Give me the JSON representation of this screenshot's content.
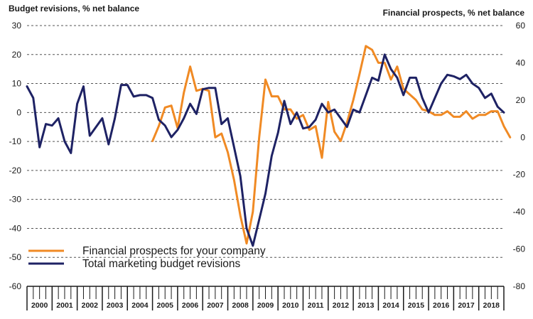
{
  "chart_data": {
    "type": "line",
    "left_axis_title": "Budget revisions, % net balance",
    "right_axis_title": "Financial prospects, % net balance",
    "left_axis": {
      "min": -60,
      "max": 30,
      "ticks": [
        "30",
        "20",
        "10",
        "0",
        "-10",
        "-20",
        "-30",
        "-40",
        "-50",
        "-60"
      ],
      "tick_values": [
        30,
        20,
        10,
        0,
        -10,
        -20,
        -30,
        -40,
        -50,
        -60
      ]
    },
    "right_axis": {
      "min": -80,
      "max": 60,
      "ticks": [
        "60",
        "40",
        "20",
        "0",
        "-20",
        "-40",
        "-60",
        "-80"
      ],
      "tick_values": [
        60,
        40,
        20,
        0,
        -20,
        -40,
        -60,
        -80
      ]
    },
    "years": [
      "2000",
      "2001",
      "2002",
      "2003",
      "2004",
      "2005",
      "2006",
      "2007",
      "2008",
      "2009",
      "2010",
      "2011",
      "2012",
      "2013",
      "2014",
      "2015",
      "2016",
      "2017",
      "2018"
    ],
    "grid": "horizontal dashed",
    "legend_position": "bottom-left",
    "series": [
      {
        "name": "Financial prospects for your company",
        "axis": "right",
        "color": "#f08a24",
        "start_quarter_index": 20,
        "values": [
          -2,
          6,
          16,
          17,
          5,
          24,
          38,
          25,
          26,
          25,
          0,
          2,
          -8,
          -23,
          -42,
          -57,
          -40,
          0,
          31,
          22,
          22,
          15,
          15,
          10,
          12,
          4,
          6,
          -11,
          19,
          3,
          -2,
          8,
          20,
          34,
          49,
          47,
          40,
          40,
          31,
          38,
          26,
          23,
          20,
          15,
          14,
          12,
          12,
          14,
          11,
          11,
          14,
          10,
          12,
          12,
          14,
          14,
          6,
          0
        ]
      },
      {
        "name": "Total marketing budget revisions",
        "axis": "left",
        "color": "#1e2264",
        "start_quarter_index": 0,
        "values": [
          9,
          5,
          -12,
          -4,
          -4.5,
          -2,
          -10,
          -14,
          3,
          9,
          -8,
          -5,
          -2,
          -11,
          -2,
          9.5,
          9.5,
          5.5,
          6,
          6,
          5,
          -2.5,
          -4.5,
          -8.5,
          -6,
          -2,
          3,
          -0.5,
          8,
          8.5,
          8.5,
          -4,
          -2,
          -12,
          -22,
          -40,
          -46,
          -37,
          -28,
          -15,
          -7,
          4,
          -4,
          0,
          -5.5,
          -5,
          -2.5,
          3,
          0,
          1,
          -2,
          -5,
          1,
          0,
          6,
          12,
          11,
          20,
          15,
          12,
          6,
          12,
          12,
          5,
          0,
          5,
          10,
          13,
          12.5,
          11.5,
          13,
          10,
          8.5,
          5,
          6.5,
          2,
          0
        ]
      }
    ]
  }
}
